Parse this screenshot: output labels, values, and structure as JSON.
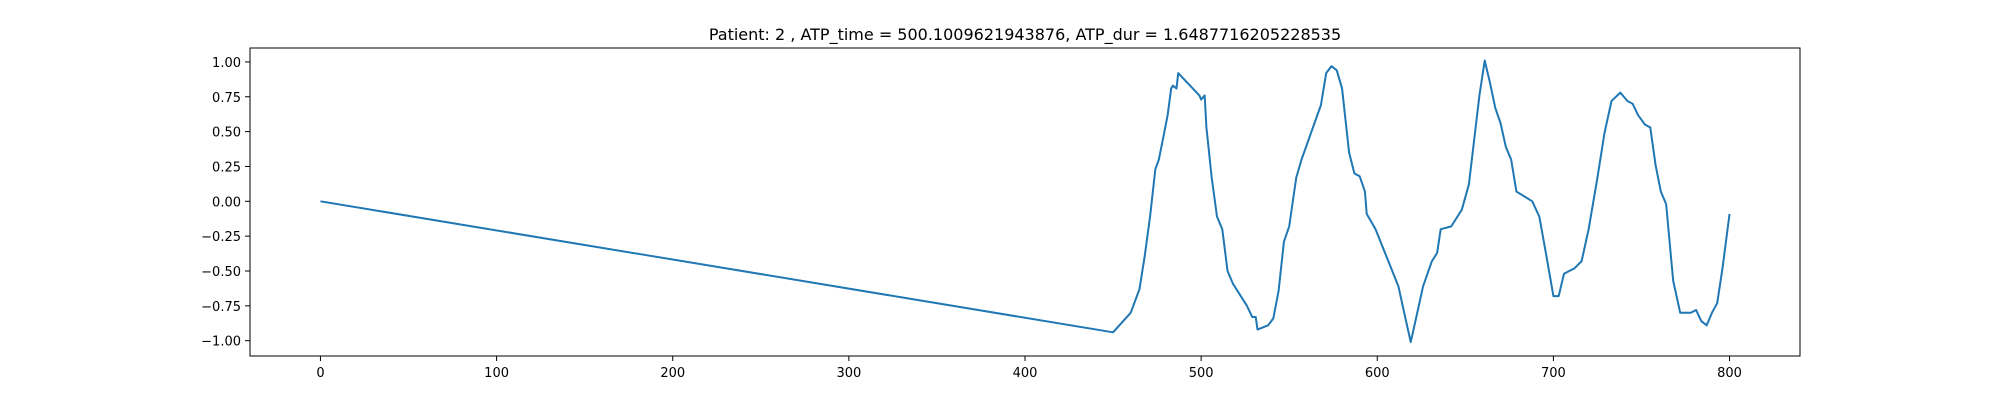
{
  "chart_data": {
    "type": "line",
    "title": "Patient: 2 , ATP_time = 500.1009621943876, ATP_dur = 1.6487716205228535",
    "x": [
      0,
      450,
      460,
      465,
      468,
      471,
      474,
      476,
      479,
      481,
      483,
      484,
      486,
      487,
      490,
      499,
      500,
      502,
      503,
      506,
      509,
      512,
      515,
      518,
      526,
      529,
      531,
      532,
      538,
      541,
      544,
      547,
      550,
      554,
      557,
      568,
      571,
      574,
      577,
      580,
      584,
      587,
      590,
      593,
      594,
      599,
      612,
      616,
      619,
      622,
      626,
      631,
      634,
      636,
      642,
      648,
      652,
      655,
      658,
      661,
      664,
      667,
      670,
      673,
      676,
      679,
      688,
      692,
      696,
      700,
      703,
      706,
      712,
      716,
      720,
      725,
      729,
      733,
      738,
      742,
      745,
      748,
      752,
      755,
      758,
      761,
      764,
      768,
      772,
      778,
      781,
      784,
      787,
      790,
      793,
      796,
      800
    ],
    "series": [
      {
        "color": "#1f77b4",
        "values": [
          0,
          -0.94,
          -0.8,
          -0.63,
          -0.39,
          -0.11,
          0.23,
          0.3,
          0.49,
          0.62,
          0.81,
          0.83,
          0.81,
          0.92,
          0.88,
          0.76,
          0.73,
          0.76,
          0.53,
          0.17,
          -0.11,
          -0.2,
          -0.5,
          -0.59,
          -0.75,
          -0.83,
          -0.83,
          -0.92,
          -0.89,
          -0.84,
          -0.64,
          -0.29,
          -0.18,
          0.17,
          0.3,
          0.69,
          0.92,
          0.97,
          0.94,
          0.81,
          0.35,
          0.2,
          0.18,
          0.07,
          -0.09,
          -0.2,
          -0.61,
          -0.84,
          -1.01,
          -0.84,
          -0.61,
          -0.43,
          -0.37,
          -0.2,
          -0.18,
          -0.06,
          0.12,
          0.44,
          0.76,
          1.01,
          0.85,
          0.67,
          0.56,
          0.39,
          0.3,
          0.07,
          0.0,
          -0.11,
          -0.39,
          -0.68,
          -0.68,
          -0.52,
          -0.48,
          -0.43,
          -0.2,
          0.17,
          0.49,
          0.72,
          0.78,
          0.72,
          0.7,
          0.62,
          0.55,
          0.53,
          0.26,
          0.07,
          -0.02,
          -0.57,
          -0.8,
          -0.8,
          -0.78,
          -0.86,
          -0.89,
          -0.8,
          -0.73,
          -0.48,
          -0.09
        ]
      }
    ],
    "xlim": [
      -40,
      840
    ],
    "xticks": [
      0,
      100,
      200,
      300,
      400,
      500,
      600,
      700,
      800
    ],
    "ylim": [
      -1.11,
      1.1
    ],
    "yticks": [
      {
        "value": -1,
        "label": "−1.00"
      },
      {
        "value": -0.75,
        "label": "−0.75"
      },
      {
        "value": -0.5,
        "label": "−0.50"
      },
      {
        "value": -0.25,
        "label": "−0.25"
      },
      {
        "value": 0,
        "label": "0.00"
      },
      {
        "value": 0.25,
        "label": "0.25"
      },
      {
        "value": 0.5,
        "label": "0.50"
      },
      {
        "value": 0.75,
        "label": "0.75"
      },
      {
        "value": 1,
        "label": "1.00"
      }
    ],
    "grid": false
  }
}
